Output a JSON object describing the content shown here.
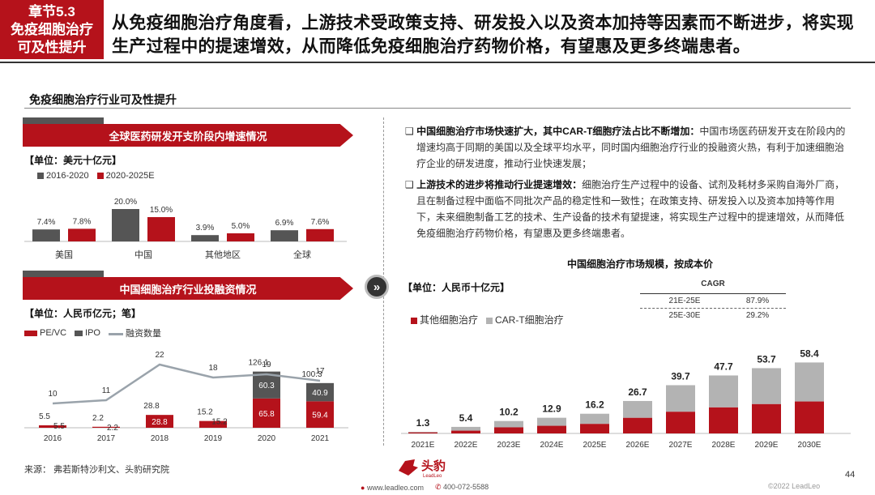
{
  "chapter": {
    "line1": "章节5.3",
    "line2": "免疫细胞治疗",
    "line3": "可及性提升"
  },
  "headline": "从免疫细胞治疗角度看，上游技术受政策支持、研发投入以及资本加持等因素而不断进步，将实现生产过程中的提速增效，从而降低免疫细胞治疗药物价格，有望惠及更多终端患者。",
  "section_title": "免疫细胞治疗行业可及性提升",
  "left_top": {
    "banner": "全球医药研发开支阶段内增速情况",
    "unit": "【单位：美元十亿元】",
    "legend": [
      "2016-2020",
      "2020-2025E"
    ]
  },
  "left_bottom": {
    "banner": "中国细胞治疗行业投融资情况",
    "unit": "【单位：人民币亿元；笔】",
    "legend": [
      "PE/VC",
      "IPO",
      "融资数量"
    ]
  },
  "bullets": [
    {
      "bold": "中国细胞治疗市场快速扩大，其中CAR-T细胞疗法占比不断增加：",
      "text": "中国市场医药研发开支在阶段内的增速均高于同期的美国以及全球平均水平，同时国内细胞治疗行业的投融资火热，有利于加速细胞治疗企业的研发进度，推动行业快速发展；"
    },
    {
      "bold": "上游技术的进步将推动行业提速增效：",
      "text": "细胞治疗生产过程中的设备、试剂及耗材多采购自海外厂商，且在制备过程中面临不同批次产品的稳定性和一致性；在政策支持、研发投入以及资本加持等作用下，未来细胞制备工艺的技术、生产设备的技术有望提速，将实现生产过程中的提速增效，从而降低免疫细胞治疗药物价格，有望惠及更多终端患者。"
    }
  ],
  "right_chart": {
    "title": "中国细胞治疗市场规模，按成本价",
    "unit": "【单位：人民币十亿元】",
    "legend": [
      "其他细胞治疗",
      "CAR-T细胞治疗"
    ],
    "cagr_title": "CAGR",
    "cagr_rows": [
      {
        "period": "21E-25E",
        "value": "87.9%"
      },
      {
        "period": "25E-30E",
        "value": "29.2%"
      }
    ]
  },
  "footer": {
    "source": "来源：  弗若斯特沙利文、头豹研究院",
    "page": "44",
    "logo_cn": "头豹",
    "logo_en": "LeadLeo",
    "website": "www.leadleo.com",
    "phone": "400-072-5588",
    "copyright": "©2022 LeadLeo"
  },
  "colors": {
    "red": "#b5121b",
    "dark": "#555555",
    "gray": "#b3b3b3",
    "line": "#9aa3ab"
  },
  "chart_data": [
    {
      "type": "bar",
      "title": "全球医药研发开支阶段内增速情况",
      "categories": [
        "美国",
        "中国",
        "其他地区",
        "全球"
      ],
      "series": [
        {
          "name": "2016-2020",
          "values": [
            7.4,
            20.0,
            3.9,
            6.9
          ],
          "labels": [
            "7.4%",
            "20.0%",
            "3.9%",
            "6.9%"
          ]
        },
        {
          "name": "2020-2025E",
          "values": [
            7.8,
            15.0,
            5.0,
            7.6
          ],
          "labels": [
            "7.8%",
            "15.0%",
            "5.0%",
            "7.6%"
          ]
        }
      ]
    },
    {
      "type": "bar",
      "title": "中国细胞治疗行业投融资情况",
      "categories": [
        "2016",
        "2017",
        "2018",
        "2019",
        "2020",
        "2021"
      ],
      "series": [
        {
          "name": "PE/VC",
          "values": [
            5.5,
            2.2,
            28.8,
            15.2,
            65.8,
            59.4
          ]
        },
        {
          "name": "IPO",
          "values": [
            0,
            0,
            0,
            0,
            60.3,
            40.9
          ]
        },
        {
          "name": "融资数量",
          "values": [
            10,
            11,
            22,
            18,
            19,
            17
          ]
        }
      ],
      "totals": [
        "5.5",
        "2.2",
        "28.8",
        "15.2",
        "126.1",
        "100.3"
      ],
      "inner_labels": [
        [
          "5.5",
          "2.2",
          "28.8",
          "15.2",
          "65.8",
          "59.4"
        ],
        [
          "",
          "",
          "",
          "",
          "60.3",
          "40.9"
        ]
      ]
    },
    {
      "type": "bar",
      "title": "中国细胞治疗市场规模，按成本价",
      "categories": [
        "2021E",
        "2022E",
        "2023E",
        "2024E",
        "2025E",
        "2026E",
        "2027E",
        "2028E",
        "2029E",
        "2030E"
      ],
      "series": [
        {
          "name": "其他细胞治疗",
          "values": [
            0.9,
            2.3,
            5.0,
            6.3,
            7.9,
            12.9,
            17.9,
            21.5,
            24.2,
            26.3
          ]
        },
        {
          "name": "CAR-T细胞治疗",
          "values": [
            0.4,
            3.1,
            5.2,
            6.6,
            8.3,
            13.8,
            21.8,
            26.2,
            29.5,
            32.1
          ]
        }
      ],
      "totals": [
        "1.3",
        "5.4",
        "10.2",
        "12.9",
        "16.2",
        "26.7",
        "39.7",
        "47.7",
        "53.7",
        "58.4"
      ]
    }
  ]
}
